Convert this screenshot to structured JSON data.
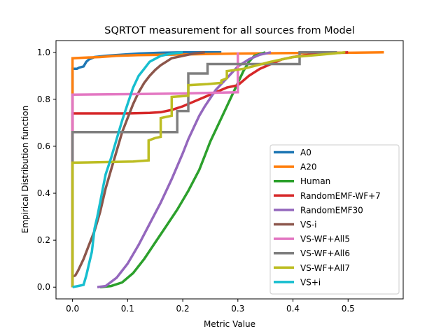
{
  "chart_data": {
    "type": "line",
    "title": "SQRTOT measurement for all sources from Model",
    "xlabel": "Metric Value",
    "ylabel": "Empirical Distribution function",
    "xlim": [
      -0.03,
      0.6
    ],
    "ylim": [
      -0.05,
      1.05
    ],
    "xticks": [
      0.0,
      0.1,
      0.2,
      0.3,
      0.4,
      0.5
    ],
    "xtick_labels": [
      "0.0",
      "0.1",
      "0.2",
      "0.3",
      "0.4",
      "0.5"
    ],
    "yticks": [
      0.0,
      0.2,
      0.4,
      0.6,
      0.8,
      1.0
    ],
    "ytick_labels": [
      "0.0",
      "0.2",
      "0.4",
      "0.6",
      "0.8",
      "1.0"
    ],
    "grid": false,
    "legend_position": "lower-right",
    "series": [
      {
        "name": "A0",
        "color": "#1f77b4",
        "points": [
          [
            0.0,
            0.0
          ],
          [
            0.0,
            0.93
          ],
          [
            0.008,
            0.93
          ],
          [
            0.012,
            0.935
          ],
          [
            0.02,
            0.94
          ],
          [
            0.025,
            0.96
          ],
          [
            0.03,
            0.97
          ],
          [
            0.04,
            0.98
          ],
          [
            0.06,
            0.985
          ],
          [
            0.09,
            0.99
          ],
          [
            0.12,
            0.995
          ],
          [
            0.16,
            0.998
          ],
          [
            0.2,
            1.0
          ],
          [
            0.27,
            1.0
          ]
        ]
      },
      {
        "name": "A20",
        "color": "#ff7f0e",
        "points": [
          [
            0.0,
            0.0
          ],
          [
            0.0,
            0.975
          ],
          [
            0.025,
            0.978
          ],
          [
            0.05,
            0.98
          ],
          [
            0.08,
            0.985
          ],
          [
            0.12,
            0.988
          ],
          [
            0.18,
            0.99
          ],
          [
            0.25,
            0.993
          ],
          [
            0.3,
            0.995
          ],
          [
            0.4,
            0.997
          ],
          [
            0.5,
            0.998
          ],
          [
            0.565,
            1.0
          ]
        ]
      },
      {
        "name": "Human",
        "color": "#2ca02c",
        "points": [
          [
            0.05,
            0.0
          ],
          [
            0.07,
            0.005
          ],
          [
            0.09,
            0.02
          ],
          [
            0.11,
            0.06
          ],
          [
            0.13,
            0.12
          ],
          [
            0.15,
            0.19
          ],
          [
            0.17,
            0.26
          ],
          [
            0.19,
            0.33
          ],
          [
            0.21,
            0.41
          ],
          [
            0.23,
            0.5
          ],
          [
            0.24,
            0.56
          ],
          [
            0.25,
            0.62
          ],
          [
            0.26,
            0.67
          ],
          [
            0.27,
            0.72
          ],
          [
            0.28,
            0.77
          ],
          [
            0.29,
            0.82
          ],
          [
            0.3,
            0.87
          ],
          [
            0.31,
            0.92
          ],
          [
            0.32,
            0.96
          ],
          [
            0.33,
            0.985
          ],
          [
            0.35,
            1.0
          ]
        ]
      },
      {
        "name": "RandomEMF-WF+7",
        "color": "#d62728",
        "points": [
          [
            0.0,
            0.0
          ],
          [
            0.0,
            0.74
          ],
          [
            0.1,
            0.74
          ],
          [
            0.14,
            0.742
          ],
          [
            0.16,
            0.745
          ],
          [
            0.18,
            0.755
          ],
          [
            0.2,
            0.77
          ],
          [
            0.22,
            0.79
          ],
          [
            0.24,
            0.81
          ],
          [
            0.26,
            0.83
          ],
          [
            0.28,
            0.85
          ],
          [
            0.3,
            0.86
          ],
          [
            0.32,
            0.9
          ],
          [
            0.34,
            0.93
          ],
          [
            0.36,
            0.95
          ],
          [
            0.38,
            0.97
          ],
          [
            0.4,
            0.98
          ],
          [
            0.43,
            0.99
          ],
          [
            0.46,
            0.995
          ],
          [
            0.5,
            1.0
          ]
        ]
      },
      {
        "name": "RandomEMF30",
        "color": "#9467bd",
        "points": [
          [
            0.045,
            0.0
          ],
          [
            0.06,
            0.005
          ],
          [
            0.08,
            0.04
          ],
          [
            0.1,
            0.1
          ],
          [
            0.12,
            0.18
          ],
          [
            0.14,
            0.27
          ],
          [
            0.16,
            0.36
          ],
          [
            0.18,
            0.46
          ],
          [
            0.2,
            0.57
          ],
          [
            0.21,
            0.63
          ],
          [
            0.22,
            0.68
          ],
          [
            0.23,
            0.73
          ],
          [
            0.24,
            0.77
          ],
          [
            0.26,
            0.84
          ],
          [
            0.28,
            0.89
          ],
          [
            0.3,
            0.94
          ],
          [
            0.32,
            0.97
          ],
          [
            0.34,
            0.99
          ],
          [
            0.36,
            1.0
          ]
        ]
      },
      {
        "name": "VS-i",
        "color": "#8c564b",
        "points": [
          [
            0.0,
            0.045
          ],
          [
            0.005,
            0.05
          ],
          [
            0.01,
            0.07
          ],
          [
            0.02,
            0.12
          ],
          [
            0.03,
            0.18
          ],
          [
            0.04,
            0.24
          ],
          [
            0.05,
            0.32
          ],
          [
            0.06,
            0.42
          ],
          [
            0.07,
            0.5
          ],
          [
            0.08,
            0.58
          ],
          [
            0.09,
            0.66
          ],
          [
            0.1,
            0.72
          ],
          [
            0.11,
            0.78
          ],
          [
            0.12,
            0.83
          ],
          [
            0.13,
            0.87
          ],
          [
            0.14,
            0.9
          ],
          [
            0.15,
            0.925
          ],
          [
            0.16,
            0.945
          ],
          [
            0.17,
            0.96
          ],
          [
            0.18,
            0.975
          ],
          [
            0.2,
            0.985
          ],
          [
            0.22,
            0.995
          ],
          [
            0.24,
            1.0
          ]
        ]
      },
      {
        "name": "VS-WF+All5",
        "color": "#e377c2",
        "points": [
          [
            0.0,
            0.0
          ],
          [
            0.0,
            0.82
          ],
          [
            0.1,
            0.822
          ],
          [
            0.2,
            0.825
          ],
          [
            0.3,
            0.83
          ],
          [
            0.3,
            1.0
          ]
        ]
      },
      {
        "name": "VS-WF+All6",
        "color": "#7f7f7f",
        "points": [
          [
            0.0,
            0.0
          ],
          [
            0.0,
            0.66
          ],
          [
            0.19,
            0.66
          ],
          [
            0.19,
            0.75
          ],
          [
            0.21,
            0.75
          ],
          [
            0.21,
            0.91
          ],
          [
            0.245,
            0.91
          ],
          [
            0.245,
            0.95
          ],
          [
            0.412,
            0.95
          ],
          [
            0.412,
            1.0
          ],
          [
            0.48,
            1.0
          ]
        ]
      },
      {
        "name": "VS-WF+All7",
        "color": "#bcbd22",
        "points": [
          [
            0.0,
            0.0
          ],
          [
            0.0,
            0.53
          ],
          [
            0.11,
            0.535
          ],
          [
            0.138,
            0.54
          ],
          [
            0.138,
            0.625
          ],
          [
            0.15,
            0.635
          ],
          [
            0.16,
            0.64
          ],
          [
            0.16,
            0.72
          ],
          [
            0.18,
            0.73
          ],
          [
            0.18,
            0.81
          ],
          [
            0.21,
            0.815
          ],
          [
            0.21,
            0.86
          ],
          [
            0.245,
            0.865
          ],
          [
            0.27,
            0.87
          ],
          [
            0.27,
            0.88
          ],
          [
            0.28,
            0.89
          ],
          [
            0.28,
            0.92
          ],
          [
            0.31,
            0.93
          ],
          [
            0.36,
            0.96
          ],
          [
            0.4,
            0.98
          ],
          [
            0.45,
            0.99
          ],
          [
            0.495,
            1.0
          ]
        ]
      },
      {
        "name": "VS+i",
        "color": "#17becf",
        "points": [
          [
            0.0,
            0.0
          ],
          [
            0.01,
            0.005
          ],
          [
            0.02,
            0.01
          ],
          [
            0.025,
            0.05
          ],
          [
            0.03,
            0.1
          ],
          [
            0.035,
            0.15
          ],
          [
            0.04,
            0.25
          ],
          [
            0.045,
            0.3
          ],
          [
            0.05,
            0.36
          ],
          [
            0.055,
            0.42
          ],
          [
            0.06,
            0.48
          ],
          [
            0.07,
            0.55
          ],
          [
            0.08,
            0.63
          ],
          [
            0.09,
            0.71
          ],
          [
            0.1,
            0.78
          ],
          [
            0.11,
            0.85
          ],
          [
            0.12,
            0.9
          ],
          [
            0.13,
            0.93
          ],
          [
            0.14,
            0.96
          ],
          [
            0.16,
            0.985
          ],
          [
            0.18,
            0.995
          ],
          [
            0.2,
            1.0
          ]
        ]
      }
    ]
  }
}
